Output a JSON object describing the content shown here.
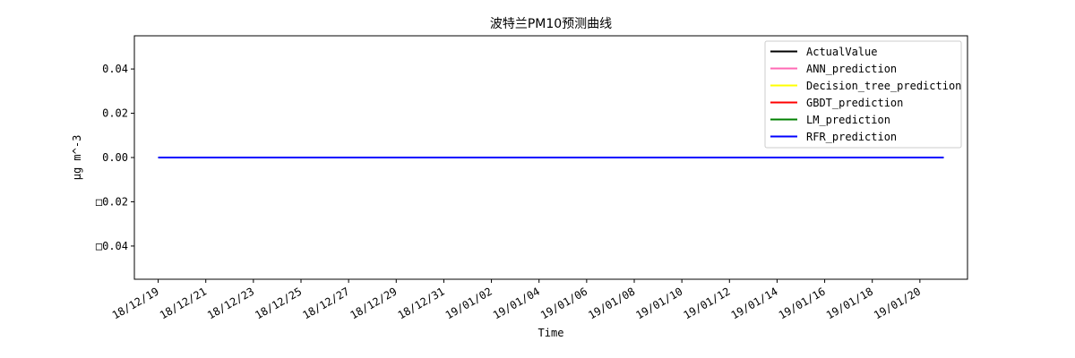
{
  "chart_data": {
    "type": "line",
    "title": "波特兰PM10预测曲线",
    "xlabel": "Time",
    "ylabel": "μg m^-3",
    "x_range": [
      "2018-12-18",
      "2019-01-22"
    ],
    "ylim": [
      -0.055,
      0.055
    ],
    "yticks": [
      0.04,
      0.02,
      0.0,
      -0.02,
      -0.04
    ],
    "ytick_labels": [
      "0.04",
      "0.02",
      "0.00",
      "□0.02",
      "□0.04"
    ],
    "xtick_dates": [
      "2018-12-19",
      "2018-12-21",
      "2018-12-23",
      "2018-12-25",
      "2018-12-27",
      "2018-12-29",
      "2018-12-31",
      "2019-01-02",
      "2019-01-04",
      "2019-01-06",
      "2019-01-08",
      "2019-01-10",
      "2019-01-12",
      "2019-01-14",
      "2019-01-16",
      "2019-01-18",
      "2019-01-20"
    ],
    "xtick_labels": [
      "18/12/19",
      "18/12/21",
      "18/12/23",
      "18/12/25",
      "18/12/27",
      "18/12/29",
      "18/12/31",
      "19/01/02",
      "19/01/04",
      "19/01/06",
      "19/01/08",
      "19/01/10",
      "19/01/12",
      "19/01/14",
      "19/01/16",
      "19/01/18",
      "19/01/20"
    ],
    "x": [
      "2018-12-19",
      "2019-01-21"
    ],
    "series": [
      {
        "name": "ActualValue",
        "color": "#000000",
        "values": [
          0.0,
          0.0
        ]
      },
      {
        "name": "ANN_prediction",
        "color": "#ff69b4",
        "values": [
          0.0,
          0.0
        ]
      },
      {
        "name": "Decision_tree_prediction",
        "color": "#ffff00",
        "values": [
          0.0,
          0.0
        ]
      },
      {
        "name": "GBDT_prediction",
        "color": "#ff0000",
        "values": [
          0.0,
          0.0
        ]
      },
      {
        "name": "LM_prediction",
        "color": "#008000",
        "values": [
          0.0,
          0.0
        ]
      },
      {
        "name": "RFR_prediction",
        "color": "#0000ff",
        "values": [
          0.0,
          0.0
        ]
      }
    ],
    "legend_position": "top-right",
    "grid": false
  }
}
